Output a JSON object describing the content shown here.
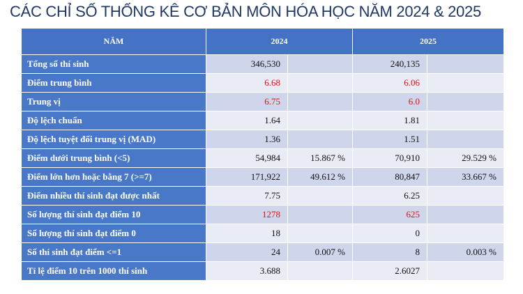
{
  "title": "CÁC CHỈ SỐ THỐNG KÊ CƠ BẢN MÔN HÓA HỌC NĂM 2024 & 2025",
  "table": {
    "header": [
      "NĂM",
      "2024",
      "2025"
    ],
    "rows": [
      [
        "Tổng số thí sinh",
        "346,530",
        null,
        "240,135",
        null
      ],
      [
        "Điểm trung bình",
        "6.68",
        null,
        "6.06",
        null
      ],
      [
        "Trung vị",
        "6.75",
        null,
        "6.0",
        null
      ],
      [
        "Độ lệch chuẩn",
        "1.64",
        null,
        "1.81",
        null
      ],
      [
        "Độ lệch tuyệt đối trung vị (MAD)",
        "1.36",
        null,
        "1.51",
        null
      ],
      [
        "Điểm dưới trung bình (<5)",
        "54,984",
        "15.867 %",
        "70,910",
        "29.529 %"
      ],
      [
        "Điểm lớn hơn hoặc bằng 7 (>=7)",
        "171,922",
        "49.612 %",
        "80,847",
        "33.667 %"
      ],
      [
        "Điểm nhiều thí sinh đạt được nhất",
        "7.75",
        null,
        "6.25",
        null
      ],
      [
        "Số lượng thí sinh đạt điểm 10",
        "1278",
        null,
        "625",
        null
      ],
      [
        "Số lượng thí sinh đạt điểm 0",
        "18",
        null,
        "0",
        null
      ],
      [
        "Số thí sinh đạt điểm <=1",
        "24",
        "0.007 %",
        "8",
        "0.003 %"
      ],
      [
        "Tỉ lệ điểm 10 trên 1000 thí sinh",
        "3.688",
        null,
        "2.6027",
        null
      ]
    ]
  }
}
